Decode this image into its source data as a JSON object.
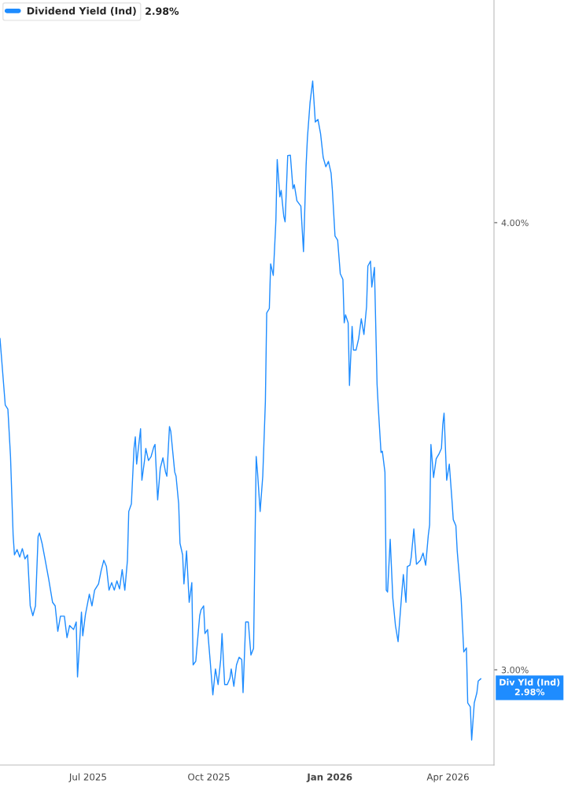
{
  "chart_data": {
    "type": "line",
    "legend": "top left",
    "grid": false,
    "marker": "none",
    "line_style": "solid",
    "xlim": [
      "2025-04-25",
      "2026-05-06"
    ],
    "xticks": [
      {
        "value": "2025-07-01",
        "label": "Jul 2025"
      },
      {
        "value": "2025-10-01",
        "label": "Oct 2025"
      },
      {
        "value": "2026-01-01",
        "label": "Jan 2026"
      },
      {
        "value": "2026-04-01",
        "label": "Apr 2026"
      }
    ],
    "ylim": [
      2.787,
      4.498
    ],
    "yticks": [
      {
        "value": 3,
        "label": "3.00%"
      },
      {
        "value": 4,
        "label": "4.00%"
      }
    ],
    "annotations": [
      "2.98%",
      {
        "text": "Div Yld (Ind)\n2.98%",
        "x": "2026-04-26",
        "y": 2.98
      }
    ],
    "x": [
      "2025-04-25",
      "2025-04-29",
      "2025-05-01",
      "2025-05-03",
      "2025-05-05",
      "2025-05-06",
      "2025-05-08",
      "2025-05-10",
      "2025-05-12",
      "2025-05-14",
      "2025-05-16",
      "2025-05-18",
      "2025-05-20",
      "2025-05-22",
      "2025-05-24",
      "2025-05-25",
      "2025-05-27",
      "2025-05-29",
      "2025-06-01",
      "2025-06-04",
      "2025-06-06",
      "2025-06-08",
      "2025-06-10",
      "2025-06-13",
      "2025-06-15",
      "2025-06-17",
      "2025-06-20",
      "2025-06-22",
      "2025-06-23",
      "2025-06-26",
      "2025-06-27",
      "2025-06-29",
      "2025-07-02",
      "2025-07-04",
      "2025-07-06",
      "2025-07-09",
      "2025-07-11",
      "2025-07-13",
      "2025-07-15",
      "2025-07-17",
      "2025-07-19",
      "2025-07-21",
      "2025-07-23",
      "2025-07-25",
      "2025-07-27",
      "2025-07-29",
      "2025-07-31",
      "2025-08-01",
      "2025-08-03",
      "2025-08-05",
      "2025-08-06",
      "2025-08-07",
      "2025-08-10",
      "2025-08-11",
      "2025-08-13",
      "2025-08-14",
      "2025-08-16",
      "2025-08-18",
      "2025-08-20",
      "2025-08-21",
      "2025-08-23",
      "2025-08-25",
      "2025-08-27",
      "2025-08-29",
      "2025-08-30",
      "2025-09-01",
      "2025-09-02",
      "2025-09-05",
      "2025-09-06",
      "2025-09-08",
      "2025-09-09",
      "2025-09-11",
      "2025-09-12",
      "2025-09-14",
      "2025-09-16",
      "2025-09-18",
      "2025-09-19",
      "2025-09-21",
      "2025-09-24",
      "2025-09-25",
      "2025-09-27",
      "2025-09-28",
      "2025-09-30",
      "2025-10-02",
      "2025-10-04",
      "2025-10-06",
      "2025-10-08",
      "2025-10-10",
      "2025-10-11",
      "2025-10-13",
      "2025-10-15",
      "2025-10-17",
      "2025-10-18",
      "2025-10-20",
      "2025-10-22",
      "2025-10-24",
      "2025-10-26",
      "2025-10-27",
      "2025-10-29",
      "2025-10-31",
      "2025-11-02",
      "2025-11-04",
      "2025-11-06",
      "2025-11-07",
      "2025-11-09",
      "2025-11-11",
      "2025-11-13",
      "2025-11-14",
      "2025-11-16",
      "2025-11-17",
      "2025-11-19",
      "2025-11-21",
      "2025-11-22",
      "2025-11-24",
      "2025-11-25",
      "2025-11-27",
      "2025-11-28",
      "2025-11-30",
      "2025-12-02",
      "2025-12-04",
      "2025-12-05",
      "2025-12-07",
      "2025-12-10",
      "2025-12-12",
      "2025-12-14",
      "2025-12-15",
      "2025-12-17",
      "2025-12-19",
      "2025-12-21",
      "2025-12-23",
      "2025-12-25",
      "2025-12-27",
      "2025-12-29",
      "2025-12-31",
      "2026-01-02",
      "2026-01-03",
      "2026-01-05",
      "2026-01-07",
      "2026-01-09",
      "2026-01-11",
      "2026-01-12",
      "2026-01-13",
      "2026-01-15",
      "2026-01-16",
      "2026-01-18",
      "2026-01-19",
      "2026-01-21",
      "2026-01-23",
      "2026-01-25",
      "2026-01-27",
      "2026-01-29",
      "2026-01-30",
      "2026-02-01",
      "2026-02-02",
      "2026-02-04",
      "2026-02-06",
      "2026-02-07",
      "2026-02-09",
      "2026-02-10",
      "2026-02-12",
      "2026-02-13",
      "2026-02-14",
      "2026-02-16",
      "2026-02-18",
      "2026-02-20",
      "2026-02-22",
      "2026-02-25",
      "2026-02-26",
      "2026-02-28",
      "2026-03-01",
      "2026-03-03",
      "2026-03-04",
      "2026-03-06",
      "2026-03-08",
      "2026-03-11",
      "2026-03-13",
      "2026-03-15",
      "2026-03-17",
      "2026-03-18",
      "2026-03-19",
      "2026-03-21",
      "2026-03-23",
      "2026-03-25",
      "2026-03-27",
      "2026-03-28",
      "2026-03-29",
      "2026-03-31",
      "2026-04-02",
      "2026-04-04",
      "2026-04-05",
      "2026-04-07",
      "2026-04-08",
      "2026-04-10",
      "2026-04-11",
      "2026-04-13",
      "2026-04-15",
      "2026-04-16",
      "2026-04-18",
      "2026-04-19",
      "2026-04-21",
      "2026-04-23",
      "2026-04-24",
      "2026-04-26"
    ],
    "series": [
      {
        "name": "Dividend Yield (Ind)",
        "color": "#1e8cff",
        "values": [
          3.741,
          3.592,
          3.583,
          3.477,
          3.301,
          3.257,
          3.269,
          3.252,
          3.271,
          3.248,
          3.257,
          3.143,
          3.121,
          3.143,
          3.298,
          3.306,
          3.283,
          3.252,
          3.204,
          3.151,
          3.143,
          3.086,
          3.12,
          3.12,
          3.072,
          3.099,
          3.09,
          3.107,
          2.984,
          3.129,
          3.076,
          3.123,
          3.169,
          3.143,
          3.178,
          3.192,
          3.222,
          3.245,
          3.231,
          3.178,
          3.195,
          3.178,
          3.199,
          3.181,
          3.224,
          3.178,
          3.245,
          3.354,
          3.371,
          3.495,
          3.521,
          3.46,
          3.539,
          3.424,
          3.468,
          3.495,
          3.468,
          3.477,
          3.498,
          3.504,
          3.38,
          3.451,
          3.474,
          3.442,
          3.433,
          3.544,
          3.533,
          3.442,
          3.433,
          3.371,
          3.283,
          3.257,
          3.192,
          3.266,
          3.151,
          3.195,
          3.011,
          3.019,
          3.121,
          3.134,
          3.143,
          3.081,
          3.09,
          3.019,
          2.944,
          3.002,
          2.967,
          3.023,
          3.081,
          2.967,
          2.967,
          2.981,
          3.002,
          2.963,
          3.011,
          3.028,
          3.023,
          2.949,
          3.107,
          3.107,
          3.033,
          3.048,
          3.477,
          3.442,
          3.354,
          3.433,
          3.6,
          3.798,
          3.808,
          3.908,
          3.882,
          4.005,
          4.141,
          4.058,
          4.072,
          4.014,
          4.002,
          4.15,
          4.151,
          4.076,
          4.085,
          4.049,
          4.037,
          3.935,
          4.129,
          4.19,
          4.269,
          4.317,
          4.225,
          4.231,
          4.199,
          4.146,
          4.125,
          4.137,
          4.111,
          4.072,
          3.97,
          3.961,
          3.886,
          3.873,
          3.776,
          3.794,
          3.776,
          3.636,
          3.768,
          3.715,
          3.715,
          3.741,
          3.785,
          3.75,
          3.812,
          3.903,
          3.914,
          3.856,
          3.9,
          3.639,
          3.583,
          3.486,
          3.489,
          3.442,
          3.178,
          3.174,
          3.292,
          3.16,
          3.099,
          3.063,
          3.178,
          3.213,
          3.151,
          3.231,
          3.234,
          3.252,
          3.315,
          3.236,
          3.245,
          3.261,
          3.234,
          3.301,
          3.324,
          3.504,
          3.43,
          3.472,
          3.482,
          3.495,
          3.548,
          3.574,
          3.424,
          3.46,
          3.38,
          3.336,
          3.322,
          3.266,
          3.195,
          3.16,
          3.04,
          3.049,
          2.926,
          2.917,
          2.843,
          2.926,
          2.949,
          2.975,
          2.98
        ]
      }
    ]
  }
}
